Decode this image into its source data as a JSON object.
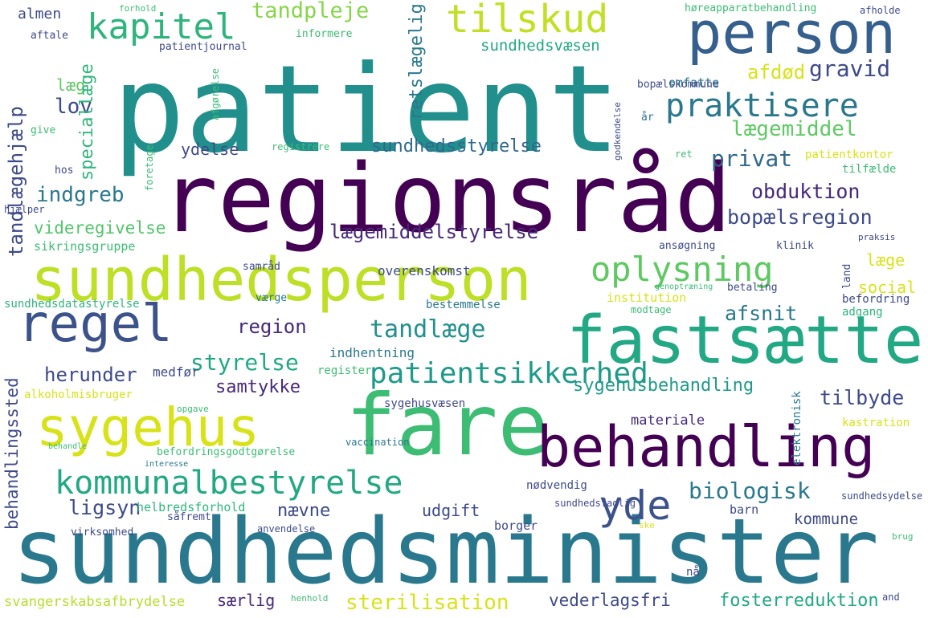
{
  "words": [
    {
      "t": "patient",
      "c": "#21908d"
    },
    {
      "t": "regionsråd",
      "c": "#440154"
    },
    {
      "t": "sundhedsminister",
      "c": "#2a788e"
    },
    {
      "t": "sundhedsperson",
      "c": "#bddf26"
    },
    {
      "t": "fare",
      "c": "#3dbc74"
    },
    {
      "t": "fastsætte",
      "c": "#22a884"
    },
    {
      "t": "behandling",
      "c": "#440154"
    },
    {
      "t": "sygehus",
      "c": "#d8e219"
    },
    {
      "t": "person",
      "c": "#355f8d"
    },
    {
      "t": "regel",
      "c": "#3b528b"
    },
    {
      "t": "kommunalbestyrelse",
      "c": "#22a884"
    },
    {
      "t": "patientsikkerhed",
      "c": "#1f9a8a"
    },
    {
      "t": "oplysning",
      "c": "#5ec962"
    },
    {
      "t": "tilskud",
      "c": "#c2df23"
    },
    {
      "t": "praktisere",
      "c": "#2a788e"
    },
    {
      "t": "kapitel",
      "c": "#2fb47c"
    },
    {
      "t": "yde",
      "c": "#3b528b"
    },
    {
      "t": "tandlæge",
      "c": "#21908d"
    },
    {
      "t": "lægemiddelstyrelse",
      "c": "#482878"
    },
    {
      "t": "biologisk",
      "c": "#2a788e"
    },
    {
      "t": "styrelse",
      "c": "#22a884"
    },
    {
      "t": "gravid",
      "c": "#3e4a89"
    },
    {
      "t": "tandpleje",
      "c": "#86d549"
    },
    {
      "t": "sundhedsstyrelse",
      "c": "#31688e"
    },
    {
      "t": "obduktion",
      "c": "#482878"
    },
    {
      "t": "bopælsregion",
      "c": "#3e4a89"
    },
    {
      "t": "privat",
      "c": "#31688e"
    },
    {
      "t": "lægemiddel",
      "c": "#5ec962"
    },
    {
      "t": "afdød",
      "c": "#d8e219"
    },
    {
      "t": "lov",
      "c": "#3e4a89"
    },
    {
      "t": "indgreb",
      "c": "#2a788e"
    },
    {
      "t": "videregivelse",
      "c": "#52c569"
    },
    {
      "t": "region",
      "c": "#482878"
    },
    {
      "t": "sygehusbehandling",
      "c": "#1f9a8a"
    },
    {
      "t": "afsnit",
      "c": "#2a788e"
    },
    {
      "t": "herunder",
      "c": "#3e4a89"
    },
    {
      "t": "samtykke",
      "c": "#482878"
    },
    {
      "t": "tilbyde",
      "c": "#3e4a89"
    },
    {
      "t": "ligsyn",
      "c": "#3e4a89"
    },
    {
      "t": "nævne",
      "c": "#3e4a89"
    },
    {
      "t": "ydelse",
      "c": "#3e4a89"
    },
    {
      "t": "læg",
      "c": "#5ec962"
    },
    {
      "t": "almen",
      "c": "#3e4a89"
    },
    {
      "t": "sterilisation",
      "c": "#d8e219"
    },
    {
      "t": "vederlagsfri",
      "c": "#3e4a89"
    },
    {
      "t": "fosterreduktion",
      "c": "#22a884"
    },
    {
      "t": "særlig",
      "c": "#482878"
    },
    {
      "t": "svangerskabsafbrydelse",
      "c": "#b5de2b"
    },
    {
      "t": "kommune",
      "c": "#3e4a89"
    },
    {
      "t": "udgift",
      "c": "#3e4a89"
    },
    {
      "t": "materiale",
      "c": "#482878"
    },
    {
      "t": "læge",
      "c": "#d8e219"
    },
    {
      "t": "social",
      "c": "#d8e219"
    },
    {
      "t": "sundhedsvæsen",
      "c": "#22a884"
    },
    {
      "t": "omfatte",
      "c": "#2a788e"
    },
    {
      "t": "sikringsgruppe",
      "c": "#3dbc74"
    },
    {
      "t": "sundhedsdatastyrelse",
      "c": "#2fb47c"
    },
    {
      "t": "overenskomst",
      "c": "#3e4a89"
    },
    {
      "t": "indhentning",
      "c": "#2a788e"
    },
    {
      "t": "register",
      "c": "#3dbc74"
    },
    {
      "t": "helbredsforhold",
      "c": "#2fb47c"
    },
    {
      "t": "befordringsgodtgørelse",
      "c": "#3dbc74"
    },
    {
      "t": "nødvendig",
      "c": "#3e4a89"
    },
    {
      "t": "sygehusvæsen",
      "c": "#3e4a89"
    },
    {
      "t": "medfør",
      "c": "#3e4a89"
    },
    {
      "t": "alkoholmisbruger",
      "c": "#d8e219"
    },
    {
      "t": "borger",
      "c": "#3e4a89"
    },
    {
      "t": "barn",
      "c": "#3e4a89"
    },
    {
      "t": "bestemmelse",
      "c": "#2a788e"
    },
    {
      "t": "institution",
      "c": "#d8e219"
    },
    {
      "t": "befordring",
      "c": "#3e4a89"
    },
    {
      "t": "adgang",
      "c": "#2fb47c"
    },
    {
      "t": "kastration",
      "c": "#d8e219"
    },
    {
      "t": "patientkontor",
      "c": "#d8e219"
    },
    {
      "t": "tilfælde",
      "c": "#3dbc74"
    },
    {
      "t": "høreapparatbehandling",
      "c": "#3dbc74"
    },
    {
      "t": "bopælskommune",
      "c": "#3e4a89"
    },
    {
      "t": "patientjournal",
      "c": "#3e4a89"
    },
    {
      "t": "informere",
      "c": "#3dbc74"
    },
    {
      "t": "aftale",
      "c": "#3e4a89"
    },
    {
      "t": "afholde",
      "c": "#3e4a89"
    },
    {
      "t": "registrere",
      "c": "#3dbc74"
    },
    {
      "t": "samråd",
      "c": "#3e4a89"
    },
    {
      "t": "værge",
      "c": "#2a788e"
    },
    {
      "t": "give",
      "c": "#3dbc74"
    },
    {
      "t": "hos",
      "c": "#3e4a89"
    },
    {
      "t": "ansøgning",
      "c": "#3e4a89"
    },
    {
      "t": "klinik",
      "c": "#3e4a89"
    },
    {
      "t": "betaling",
      "c": "#3e4a89"
    },
    {
      "t": "modtage",
      "c": "#3dbc74"
    },
    {
      "t": "vaccination",
      "c": "#2a788e"
    },
    {
      "t": "sundhedsfaglig",
      "c": "#3e4a89"
    },
    {
      "t": "sundhedsydelse",
      "c": "#3e4a89"
    },
    {
      "t": "anvendelse",
      "c": "#3e4a89"
    },
    {
      "t": "virksomhed",
      "c": "#3e4a89"
    },
    {
      "t": "såfremt",
      "c": "#3e4a89"
    },
    {
      "t": "henhold",
      "c": "#3dbc74"
    },
    {
      "t": "and",
      "c": "#3e4a89"
    },
    {
      "t": "forhold",
      "c": "#3dbc74"
    },
    {
      "t": "opgave",
      "c": "#3dbc74"
    },
    {
      "t": "behandle",
      "c": "#3dbc74"
    },
    {
      "t": "interesse",
      "c": "#2a788e"
    },
    {
      "t": "hjælper",
      "c": "#3e4a89"
    },
    {
      "t": "genoptræning",
      "c": "#3dbc74"
    },
    {
      "t": "praksis",
      "c": "#3e4a89"
    },
    {
      "t": "ret",
      "c": "#3dbc74"
    },
    {
      "t": "år",
      "c": "#2a788e"
    },
    {
      "t": "nå",
      "c": "#3e4a89"
    },
    {
      "t": "ske",
      "c": "#d8e219"
    },
    {
      "t": "brug",
      "c": "#3dbc74"
    },
    {
      "t": "tandlægehjælp",
      "c": "#3e4a89"
    },
    {
      "t": "speciallæge",
      "c": "#2fb47c"
    },
    {
      "t": "retslægelig",
      "c": "#2a788e"
    },
    {
      "t": "behandlingssted",
      "c": "#3e4a89"
    },
    {
      "t": "elektronisk",
      "c": "#2a788e"
    },
    {
      "t": "land",
      "c": "#3e4a89"
    },
    {
      "t": "foretage",
      "c": "#3dbc74"
    },
    {
      "t": "godkendelse",
      "c": "#3e4a89"
    },
    {
      "t": "afgørelse",
      "c": "#3dbc74"
    }
  ]
}
